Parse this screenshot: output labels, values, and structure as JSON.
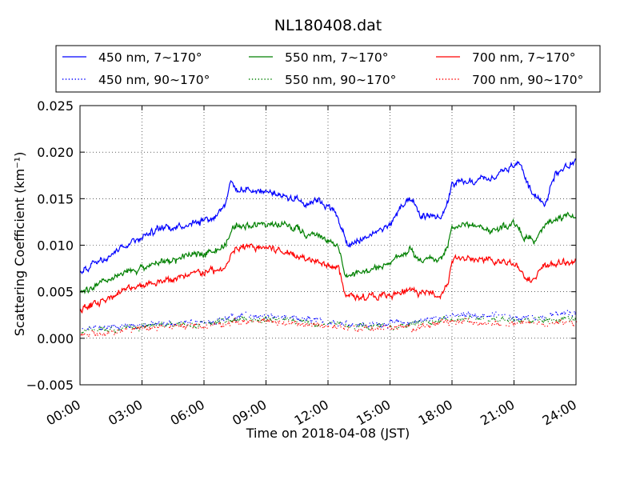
{
  "chart_data": {
    "type": "line",
    "title": "NL180408.dat",
    "xlabel": "Time on 2018-04-08 (JST)",
    "ylabel": "Scattering Coefficient (km⁻¹)",
    "xlim": [
      0,
      24
    ],
    "ylim": [
      -0.005,
      0.025
    ],
    "x_ticks": [
      0,
      3,
      6,
      9,
      12,
      15,
      18,
      21,
      24
    ],
    "x_tick_labels": [
      "00:00",
      "03:00",
      "06:00",
      "09:00",
      "12:00",
      "15:00",
      "18:00",
      "21:00",
      "24:00"
    ],
    "y_ticks": [
      -0.005,
      0.0,
      0.005,
      0.01,
      0.015,
      0.02,
      0.025
    ],
    "y_tick_labels": [
      "−0.005",
      "0.000",
      "0.005",
      "0.010",
      "0.015",
      "0.020",
      "0.025"
    ],
    "grid": true,
    "legend_location": "above plot, 3 columns",
    "series": [
      {
        "name": "450 nm, 7∼170°",
        "color": "#0000ff",
        "style": "solid",
        "x": [
          0,
          1,
          2,
          3,
          4,
          5,
          6,
          6.5,
          7,
          7.3,
          7.6,
          8,
          9,
          10,
          10.5,
          11,
          11.5,
          12,
          12.5,
          12.8,
          13,
          13.5,
          14,
          15,
          15.5,
          16,
          16.5,
          17,
          17.5,
          17.8,
          18,
          19,
          20,
          20.5,
          21,
          21.3,
          21.7,
          22,
          22.5,
          23,
          23.5,
          24
        ],
        "y": [
          0.0072,
          0.0085,
          0.0098,
          0.011,
          0.0118,
          0.0122,
          0.0128,
          0.013,
          0.0145,
          0.0168,
          0.0158,
          0.016,
          0.0158,
          0.0152,
          0.015,
          0.0145,
          0.015,
          0.0142,
          0.013,
          0.0108,
          0.0098,
          0.0105,
          0.011,
          0.0122,
          0.014,
          0.0148,
          0.013,
          0.0132,
          0.013,
          0.0145,
          0.0165,
          0.0168,
          0.0172,
          0.018,
          0.0185,
          0.019,
          0.0162,
          0.0155,
          0.0145,
          0.0178,
          0.0183,
          0.019
        ]
      },
      {
        "name": "550 nm, 7∼170°",
        "color": "#008000",
        "style": "solid",
        "x": [
          0,
          1,
          2,
          3,
          4,
          5,
          6,
          6.5,
          7,
          7.5,
          8,
          9,
          10,
          10.5,
          11,
          11.5,
          12,
          12.5,
          12.8,
          13,
          14,
          15,
          15.5,
          16,
          16.5,
          17,
          17.5,
          17.8,
          18,
          19,
          20,
          21,
          21.5,
          22,
          22.5,
          23,
          24
        ],
        "y": [
          0.0048,
          0.0058,
          0.0068,
          0.0076,
          0.0082,
          0.0086,
          0.0093,
          0.0095,
          0.0098,
          0.0122,
          0.0122,
          0.0122,
          0.0122,
          0.0118,
          0.011,
          0.0112,
          0.0105,
          0.0098,
          0.0072,
          0.0068,
          0.0072,
          0.008,
          0.009,
          0.0095,
          0.0082,
          0.0085,
          0.0085,
          0.01,
          0.012,
          0.0122,
          0.0115,
          0.0125,
          0.011,
          0.0102,
          0.0122,
          0.0128,
          0.0132
        ]
      },
      {
        "name": "700 nm, 7∼170°",
        "color": "#ff0000",
        "style": "solid",
        "x": [
          0,
          1,
          2,
          3,
          4,
          5,
          6,
          6.5,
          7,
          7.5,
          8,
          9,
          10,
          10.5,
          11,
          11.5,
          12,
          12.5,
          12.8,
          13,
          14,
          15,
          15.5,
          16,
          16.5,
          17,
          17.5,
          17.8,
          18,
          19,
          20,
          21,
          21.5,
          22,
          22.5,
          23,
          24
        ],
        "y": [
          0.003,
          0.004,
          0.005,
          0.0058,
          0.0062,
          0.0065,
          0.0072,
          0.0072,
          0.0075,
          0.0095,
          0.0098,
          0.0098,
          0.0092,
          0.009,
          0.0085,
          0.0085,
          0.008,
          0.0075,
          0.005,
          0.0045,
          0.0045,
          0.0045,
          0.0048,
          0.0052,
          0.0048,
          0.0048,
          0.0048,
          0.006,
          0.0085,
          0.0085,
          0.0082,
          0.0082,
          0.0068,
          0.0063,
          0.0078,
          0.008,
          0.0083
        ]
      },
      {
        "name": "450 nm, 90∼170°",
        "color": "#0000ff",
        "style": "dotted",
        "x": [
          0,
          3,
          6,
          8,
          10,
          12,
          14,
          16,
          18,
          20,
          22,
          24
        ],
        "y": [
          0.001,
          0.0015,
          0.0018,
          0.0025,
          0.0022,
          0.0018,
          0.0015,
          0.0018,
          0.0025,
          0.0025,
          0.0022,
          0.0028
        ]
      },
      {
        "name": "550 nm, 90∼170°",
        "color": "#008000",
        "style": "dotted",
        "x": [
          0,
          3,
          6,
          8,
          10,
          12,
          14,
          16,
          18,
          20,
          22,
          24
        ],
        "y": [
          0.0008,
          0.0013,
          0.0016,
          0.0021,
          0.0019,
          0.0016,
          0.0013,
          0.0015,
          0.0021,
          0.0021,
          0.0019,
          0.0022
        ]
      },
      {
        "name": "700 nm, 90∼170°",
        "color": "#ff0000",
        "style": "dotted",
        "x": [
          0,
          3,
          6,
          8,
          10,
          12,
          14,
          16,
          18,
          20,
          22,
          24
        ],
        "y": [
          0.0004,
          0.0011,
          0.0014,
          0.0019,
          0.0017,
          0.0013,
          0.0011,
          0.0012,
          0.0018,
          0.0018,
          0.0016,
          0.0017
        ]
      }
    ]
  }
}
